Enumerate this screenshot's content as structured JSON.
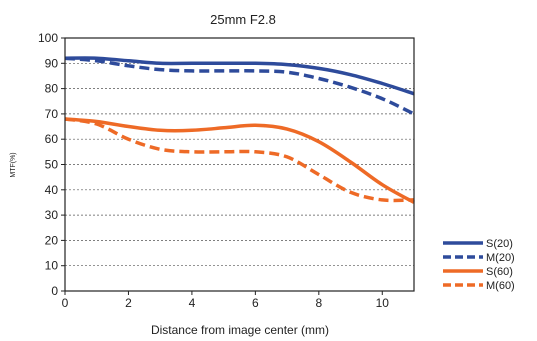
{
  "chart_data": {
    "type": "line",
    "title": "25mm F2.8",
    "xlabel": "Distance from image center (mm)",
    "ylabel": "MTF(%)",
    "xlim": [
      0,
      11
    ],
    "ylim": [
      0,
      100
    ],
    "x_ticks": [
      0,
      2,
      4,
      6,
      8,
      10
    ],
    "y_ticks": [
      0,
      10,
      20,
      30,
      40,
      50,
      60,
      70,
      80,
      90,
      100
    ],
    "grid": "horizontal dashed",
    "legend_position": "right, outside plot",
    "series": [
      {
        "name": "S(20)",
        "color": "#2e4b9b",
        "style": "solid",
        "x": [
          0,
          1,
          2,
          3,
          4,
          5,
          6,
          7,
          8,
          9,
          10,
          11
        ],
        "y": [
          92,
          92,
          91,
          90,
          90,
          90,
          90,
          89.5,
          88,
          85.5,
          82,
          78
        ]
      },
      {
        "name": "M(20)",
        "color": "#2e4b9b",
        "style": "dashed",
        "x": [
          0,
          1,
          2,
          3,
          4,
          5,
          6,
          7,
          8,
          9,
          10,
          11
        ],
        "y": [
          92,
          91,
          89,
          87.5,
          87,
          87,
          87,
          86.5,
          84,
          80.5,
          76,
          70
        ]
      },
      {
        "name": "S(60)",
        "color": "#ee6a26",
        "style": "solid",
        "x": [
          0,
          1,
          2,
          3,
          4,
          5,
          6,
          7,
          8,
          9,
          10,
          11
        ],
        "y": [
          68,
          67,
          65,
          63.5,
          63.5,
          64.5,
          65.5,
          64,
          59,
          51,
          42,
          35
        ]
      },
      {
        "name": "M(60)",
        "color": "#ee6a26",
        "style": "dashed",
        "x": [
          0,
          1,
          2,
          3,
          4,
          5,
          6,
          7,
          8,
          9,
          10,
          11
        ],
        "y": [
          68,
          66,
          60,
          56,
          55,
          55,
          55,
          53,
          46,
          39,
          36,
          36
        ]
      }
    ]
  }
}
